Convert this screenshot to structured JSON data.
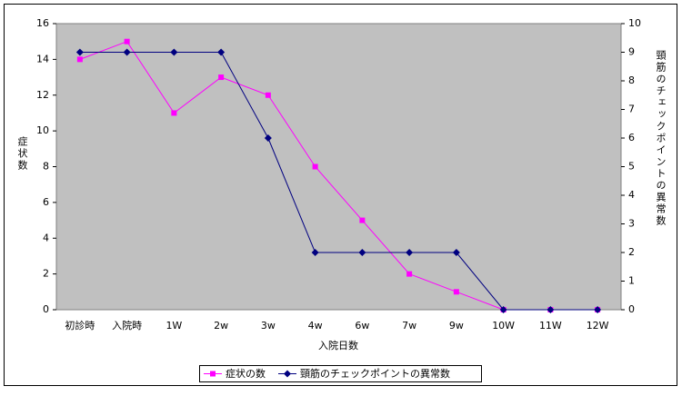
{
  "chart_data": {
    "type": "line",
    "x_label": "入院日数",
    "y_label": "症状数",
    "y2_label": "頸筋のチェックポイントの異常数",
    "categories": [
      "初診時",
      "入院時",
      "1W",
      "2w",
      "3w",
      "4w",
      "6w",
      "7w",
      "9w",
      "10W",
      "11W",
      "12W"
    ],
    "series": [
      {
        "name": "症状の数",
        "color": "#ff00ff",
        "marker": "square",
        "values": [
          14,
          15,
          11,
          13,
          12,
          8,
          5,
          2,
          1,
          0,
          0,
          0
        ]
      },
      {
        "name": "頸筋のチェックポイントの異常数",
        "color": "#000080",
        "marker": "diamond",
        "axis": "y2",
        "values": [
          9,
          9,
          9,
          9,
          6,
          2,
          2,
          2,
          2,
          0,
          0,
          0
        ]
      }
    ],
    "ylim": [
      0,
      16
    ],
    "yticks": [
      0,
      2,
      4,
      6,
      8,
      10,
      12,
      14,
      16
    ],
    "y2lim": [
      0,
      10
    ],
    "y2ticks": [
      0,
      1,
      2,
      3,
      4,
      5,
      6,
      7,
      8,
      9,
      10
    ],
    "grid": false,
    "legend": "bottom"
  }
}
